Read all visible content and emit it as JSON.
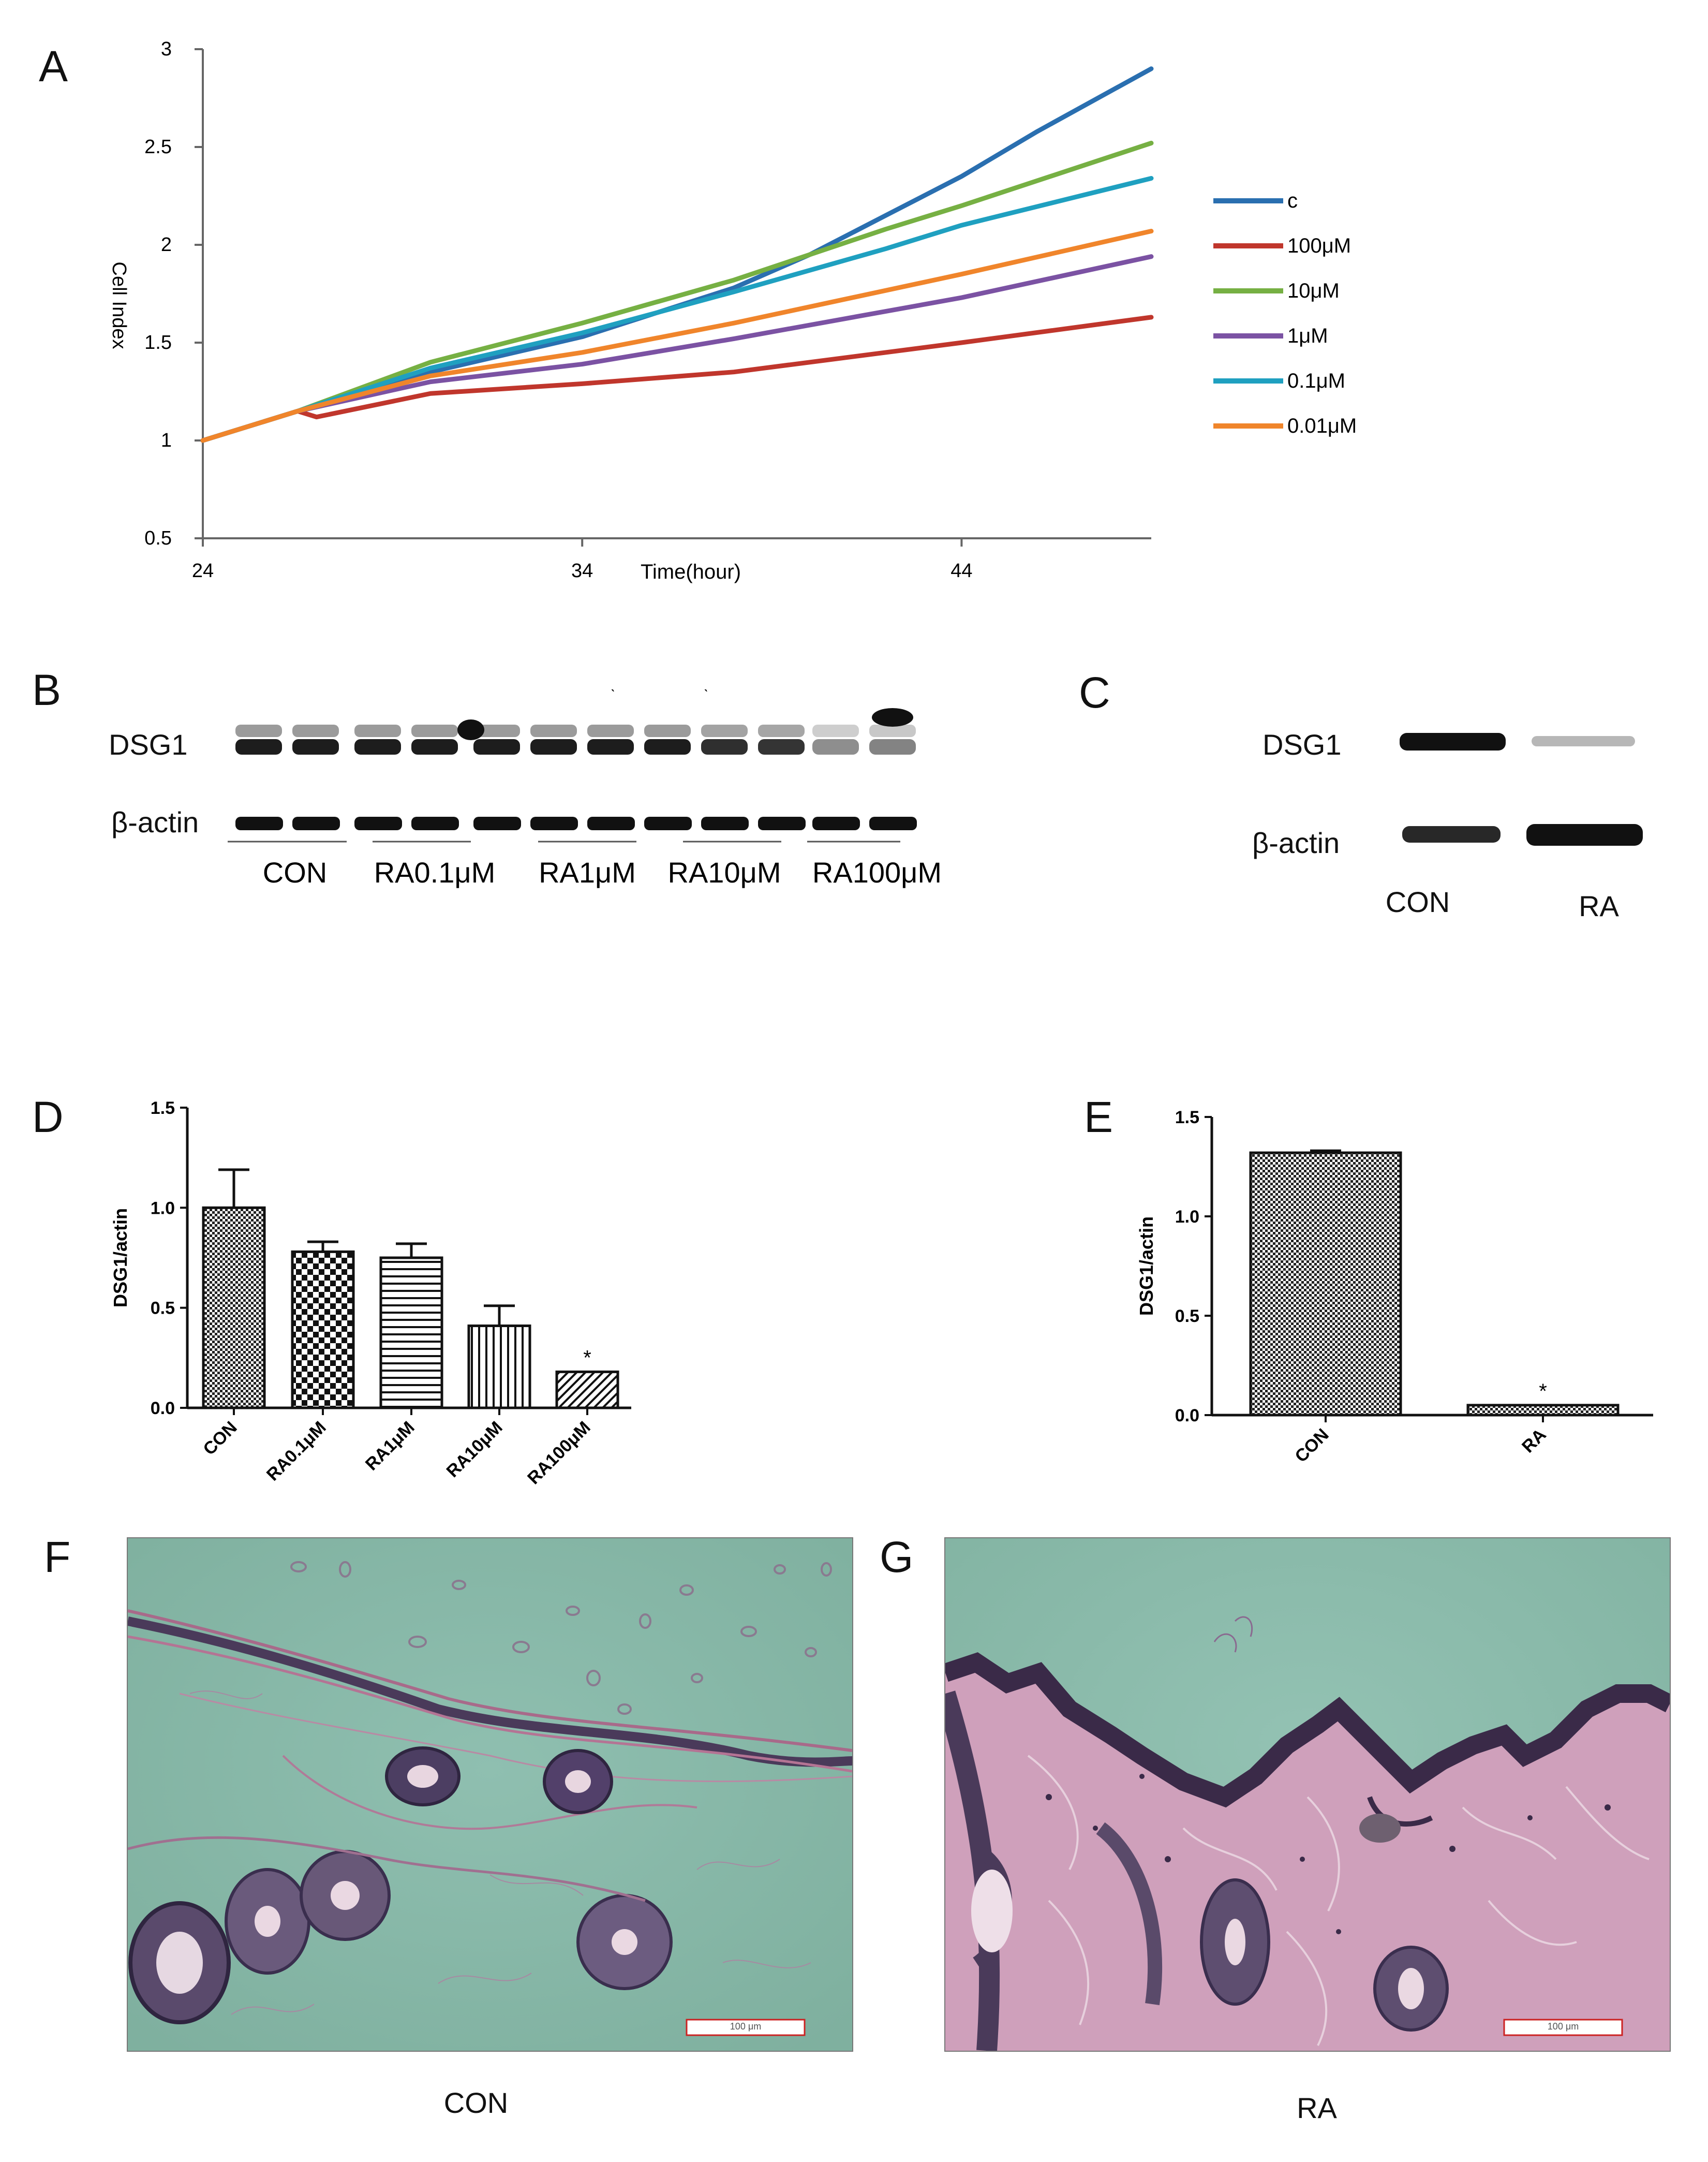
{
  "panels": {
    "A": "A",
    "B": "B",
    "C": "C",
    "D": "D",
    "E": "E",
    "F": "F",
    "G": "G"
  },
  "chart_data": [
    {
      "id": "A",
      "type": "line",
      "xlabel": "Time(hour)",
      "ylabel": "Cell Index",
      "xlim": [
        24,
        49
      ],
      "ylim": [
        0.5,
        3
      ],
      "x_ticks": [
        "24",
        "34",
        "44"
      ],
      "y_ticks": [
        "0.5",
        "1",
        "1.5",
        "2",
        "2.5",
        "3"
      ],
      "legend_position": "right",
      "series": [
        {
          "name": "c",
          "color": "#2a6fb0",
          "x": [
            24,
            26.5,
            30,
            34,
            38,
            40,
            42,
            44,
            46,
            49
          ],
          "y": [
            1.0,
            1.15,
            1.35,
            1.53,
            1.78,
            1.95,
            2.15,
            2.35,
            2.58,
            2.9
          ]
        },
        {
          "name": "100μM",
          "color": "#c0362c",
          "x": [
            24,
            26.5,
            27,
            30,
            34,
            38,
            44,
            49
          ],
          "y": [
            1.0,
            1.15,
            1.12,
            1.24,
            1.29,
            1.35,
            1.5,
            1.63
          ]
        },
        {
          "name": "10μM",
          "color": "#76b043",
          "x": [
            24,
            26.5,
            30,
            34,
            38,
            42,
            44,
            49
          ],
          "y": [
            1.0,
            1.15,
            1.4,
            1.6,
            1.82,
            2.08,
            2.2,
            2.52
          ]
        },
        {
          "name": "1μM",
          "color": "#7b52a3",
          "x": [
            24,
            26.5,
            30,
            34,
            38,
            44,
            49
          ],
          "y": [
            1.0,
            1.15,
            1.3,
            1.39,
            1.52,
            1.73,
            1.94
          ]
        },
        {
          "name": "0.1μM",
          "color": "#1fa0c0",
          "x": [
            24,
            26.5,
            30,
            34,
            38,
            42,
            44,
            49
          ],
          "y": [
            1.0,
            1.15,
            1.37,
            1.55,
            1.76,
            1.98,
            2.1,
            2.34
          ]
        },
        {
          "name": "0.01μM",
          "color": "#f0852b",
          "x": [
            24,
            26.5,
            30,
            34,
            38,
            44,
            49
          ],
          "y": [
            1.0,
            1.15,
            1.33,
            1.45,
            1.6,
            1.85,
            2.07
          ]
        }
      ]
    },
    {
      "id": "D",
      "type": "bar",
      "ylabel": "DSG1/actin",
      "ylim": [
        0,
        1.5
      ],
      "y_ticks": [
        "0.0",
        "0.5",
        "1.0",
        "1.5"
      ],
      "categories": [
        "CON",
        "RA0.1μM",
        "RA1μM",
        "RA10μM",
        "RA100μM"
      ],
      "values": [
        1.0,
        0.78,
        0.75,
        0.41,
        0.18
      ],
      "errors": [
        0.19,
        0.05,
        0.07,
        0.1,
        0.0
      ],
      "patterns": [
        "dots",
        "checker",
        "hlines",
        "vlines",
        "diag"
      ],
      "annotations": [
        {
          "category": "RA100μM",
          "text": "*"
        }
      ]
    },
    {
      "id": "E",
      "type": "bar",
      "ylabel": "DSG1/actin",
      "ylim": [
        0,
        1.5
      ],
      "y_ticks": [
        "0.0",
        "0.5",
        "1.0",
        "1.5"
      ],
      "categories": [
        "CON",
        "RA"
      ],
      "values": [
        1.32,
        0.05
      ],
      "errors": [
        0.01,
        0.0
      ],
      "patterns": [
        "dots",
        "dots"
      ],
      "annotations": [
        {
          "category": "RA",
          "text": "*"
        }
      ]
    }
  ],
  "blotB": {
    "labels": [
      "DSG1",
      "β-actin"
    ],
    "groups": [
      "CON",
      "RA0.1μM",
      "RA1μM",
      "RA10μM",
      "RA100μM"
    ],
    "dsg1_intensity": [
      1,
      1,
      1,
      1,
      1,
      1,
      1,
      1,
      0.92,
      0.9,
      0.5,
      0.55
    ],
    "actin_intensity": [
      1,
      1,
      1,
      1,
      1,
      1,
      1,
      1,
      1,
      1,
      1,
      1
    ]
  },
  "blotC": {
    "labels": [
      "DSG1",
      "β-actin"
    ],
    "groups": [
      "CON",
      "RA"
    ],
    "dsg1_intensity": [
      1,
      0.3
    ],
    "actin_intensity": [
      0.9,
      1
    ]
  },
  "micrographs": {
    "F": {
      "caption": "CON",
      "scale": "100 μm"
    },
    "G": {
      "caption": "RA",
      "scale": "100 μm"
    }
  }
}
